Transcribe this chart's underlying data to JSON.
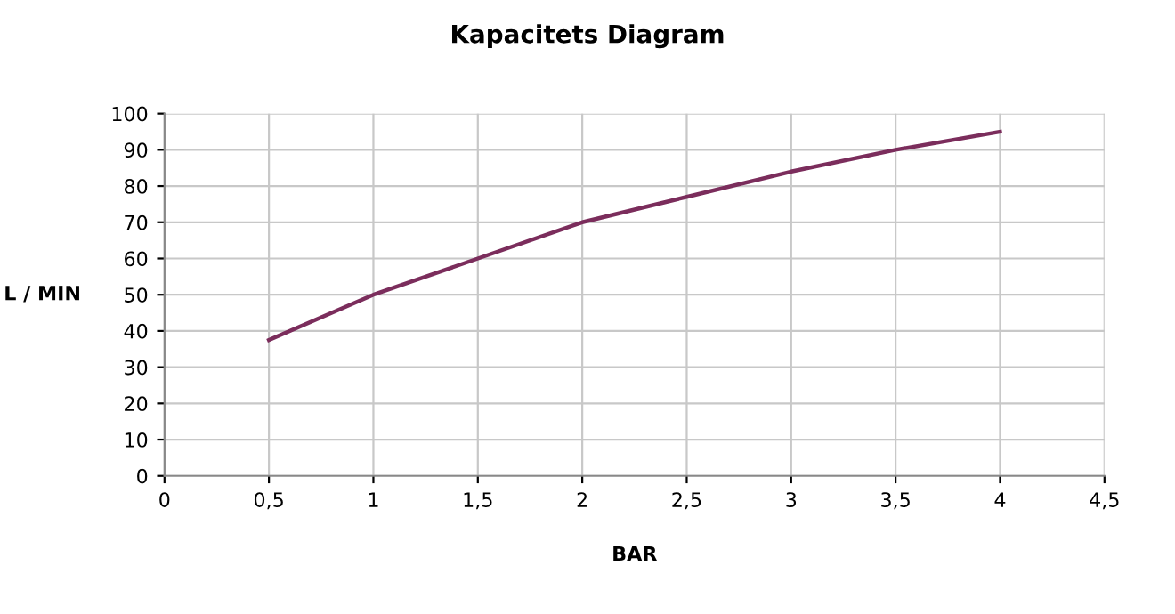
{
  "chart_data": {
    "type": "line",
    "title": "Kapacitets Diagram",
    "xlabel": "BAR",
    "ylabel": "L / MIN",
    "x": [
      0.5,
      1,
      1.5,
      2,
      2.5,
      3,
      3.5,
      4
    ],
    "series": [
      {
        "color": "#7b2d5c",
        "values": [
          37.5,
          50,
          60,
          70,
          77,
          84,
          90,
          95
        ]
      }
    ],
    "xlim": [
      0,
      4.5
    ],
    "ylim": [
      0,
      100
    ],
    "xticks": [
      0,
      {
        "value": 0.5,
        "label": "0,5"
      },
      1,
      {
        "value": 1.5,
        "label": "1,5"
      },
      2,
      {
        "value": 2.5,
        "label": "2,5"
      },
      3,
      {
        "value": 3.5,
        "label": "3,5"
      },
      4,
      {
        "value": 4.5,
        "label": "4,5"
      }
    ],
    "yticks": [
      0,
      10,
      20,
      30,
      40,
      50,
      60,
      70,
      80,
      90,
      100
    ],
    "grid": true,
    "legend": false,
    "marker": "none",
    "line_style": "solid"
  }
}
